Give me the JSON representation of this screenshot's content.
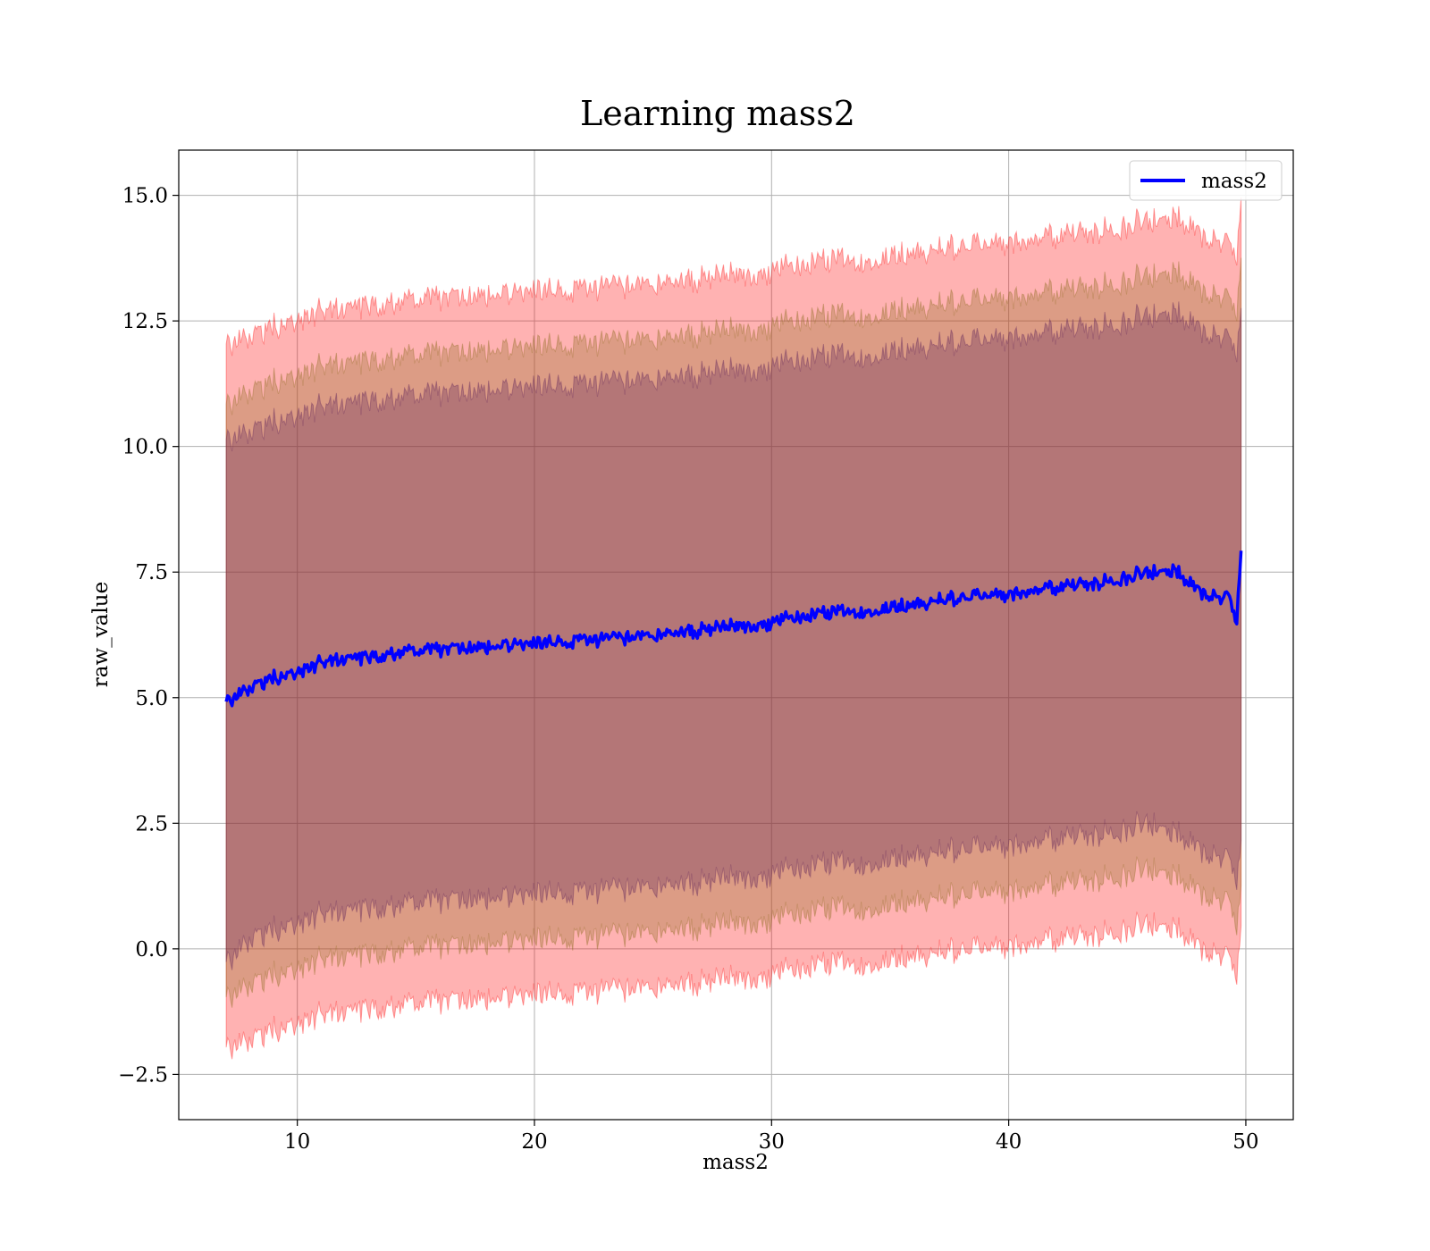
{
  "chart_data": {
    "type": "line",
    "title": "Learning mass2",
    "xlabel": "mass2",
    "ylabel": "raw_value",
    "xlim": [
      5,
      52
    ],
    "ylim": [
      -3.4,
      15.9
    ],
    "xticks": [
      10,
      20,
      30,
      40,
      50
    ],
    "xtick_labels": [
      "10",
      "20",
      "30",
      "40",
      "50"
    ],
    "yticks": [
      -2.5,
      0.0,
      2.5,
      5.0,
      7.5,
      10.0,
      12.5,
      15.0
    ],
    "ytick_labels": [
      "−2.5",
      "0.0",
      "2.5",
      "5.0",
      "7.5",
      "10.0",
      "12.5",
      "15.0"
    ],
    "grid": true,
    "legend": {
      "position": "top-right",
      "entries": [
        "mass2"
      ]
    },
    "colors": {
      "line": "#0000ff",
      "band_outer": "#ff0000",
      "band_middle": "#8b6b1e",
      "band_inner": "#5b1f59"
    },
    "series": [
      {
        "name": "mass2",
        "x": [
          7,
          8,
          9,
          10,
          11,
          12,
          13,
          14,
          15,
          16,
          17,
          18,
          19,
          20,
          21,
          22,
          23,
          24,
          25,
          26,
          27,
          28,
          29,
          30,
          31,
          32,
          33,
          34,
          35,
          36,
          37,
          38,
          39,
          40,
          41,
          42,
          43,
          44,
          45,
          46,
          47,
          48,
          49,
          49.3,
          49.6,
          49.8
        ],
        "y": [
          4.9,
          5.2,
          5.4,
          5.5,
          5.7,
          5.8,
          5.8,
          5.9,
          5.95,
          5.95,
          6.0,
          6.0,
          6.05,
          6.05,
          6.1,
          6.15,
          6.15,
          6.2,
          6.25,
          6.3,
          6.35,
          6.4,
          6.45,
          6.5,
          6.6,
          6.65,
          6.7,
          6.75,
          6.8,
          6.85,
          6.95,
          7.0,
          7.05,
          7.05,
          7.15,
          7.2,
          7.25,
          7.3,
          7.4,
          7.5,
          7.55,
          7.1,
          7.0,
          7.1,
          6.4,
          7.95
        ],
        "bands": [
          {
            "lower": [
              -2.0,
              -1.8,
              -1.6,
              -1.5,
              -1.3,
              -1.2,
              -1.2,
              -1.1,
              -1.05,
              -1.05,
              -1.0,
              -1.0,
              -0.95,
              -0.95,
              -0.9,
              -0.85,
              -0.85,
              -0.8,
              -0.75,
              -0.7,
              -0.65,
              -0.6,
              -0.55,
              -0.5,
              -0.4,
              -0.35,
              -0.3,
              -0.25,
              -0.2,
              -0.15,
              -0.05,
              0.0,
              0.05,
              0.05,
              0.15,
              0.2,
              0.25,
              0.3,
              0.4,
              0.5,
              0.45,
              0.0,
              -0.1,
              0.0,
              -0.7,
              0.5
            ],
            "upper": [
              12.0,
              12.2,
              12.4,
              12.5,
              12.7,
              12.8,
              12.8,
              12.9,
              12.95,
              12.95,
              13.0,
              13.0,
              13.05,
              13.05,
              13.1,
              13.15,
              13.15,
              13.2,
              13.25,
              13.3,
              13.35,
              13.4,
              13.45,
              13.5,
              13.6,
              13.65,
              13.7,
              13.75,
              13.8,
              13.85,
              13.95,
              14.0,
              14.05,
              14.05,
              14.15,
              14.2,
              14.25,
              14.3,
              14.4,
              14.5,
              14.6,
              14.2,
              14.1,
              14.2,
              13.6,
              15.0
            ]
          },
          {
            "lower": [
              -1.0,
              -0.7,
              -0.5,
              -0.4,
              -0.2,
              -0.1,
              -0.1,
              0.0,
              0.05,
              0.05,
              0.1,
              0.1,
              0.15,
              0.15,
              0.2,
              0.25,
              0.25,
              0.3,
              0.35,
              0.4,
              0.45,
              0.5,
              0.55,
              0.6,
              0.7,
              0.75,
              0.8,
              0.85,
              0.9,
              0.95,
              1.05,
              1.1,
              1.15,
              1.15,
              1.25,
              1.3,
              1.35,
              1.4,
              1.5,
              1.6,
              1.5,
              1.1,
              1.0,
              1.1,
              0.3,
              1.3
            ],
            "upper": [
              10.8,
              11.1,
              11.3,
              11.4,
              11.6,
              11.7,
              11.7,
              11.8,
              11.85,
              11.85,
              11.9,
              11.9,
              11.95,
              11.95,
              12.0,
              12.05,
              12.05,
              12.1,
              12.15,
              12.2,
              12.25,
              12.3,
              12.35,
              12.4,
              12.5,
              12.55,
              12.6,
              12.65,
              12.7,
              12.75,
              12.85,
              12.9,
              12.95,
              12.95,
              13.05,
              13.1,
              13.15,
              13.2,
              13.3,
              13.4,
              13.5,
              13.1,
              13.0,
              13.1,
              12.5,
              13.8
            ]
          },
          {
            "lower": [
              -0.3,
              0.2,
              0.4,
              0.5,
              0.7,
              0.8,
              0.8,
              0.9,
              0.95,
              0.95,
              1.0,
              1.0,
              1.05,
              1.05,
              1.1,
              1.15,
              1.15,
              1.2,
              1.25,
              1.3,
              1.35,
              1.4,
              1.45,
              1.5,
              1.6,
              1.65,
              1.7,
              1.75,
              1.8,
              1.85,
              1.95,
              2.0,
              2.05,
              2.05,
              2.15,
              2.2,
              2.25,
              2.3,
              2.4,
              2.5,
              2.35,
              1.95,
              1.85,
              1.95,
              1.2,
              2.2
            ],
            "upper": [
              10.1,
              10.3,
              10.5,
              10.6,
              10.8,
              10.9,
              10.9,
              11.0,
              11.05,
              11.05,
              11.1,
              11.1,
              11.15,
              11.15,
              11.2,
              11.25,
              11.25,
              11.3,
              11.35,
              11.4,
              11.45,
              11.5,
              11.55,
              11.6,
              11.7,
              11.75,
              11.8,
              11.85,
              11.9,
              11.95,
              12.05,
              12.1,
              12.15,
              12.15,
              12.25,
              12.3,
              12.35,
              12.4,
              12.5,
              12.6,
              12.7,
              12.3,
              12.2,
              12.3,
              11.7,
              12.8
            ]
          }
        ]
      }
    ]
  }
}
